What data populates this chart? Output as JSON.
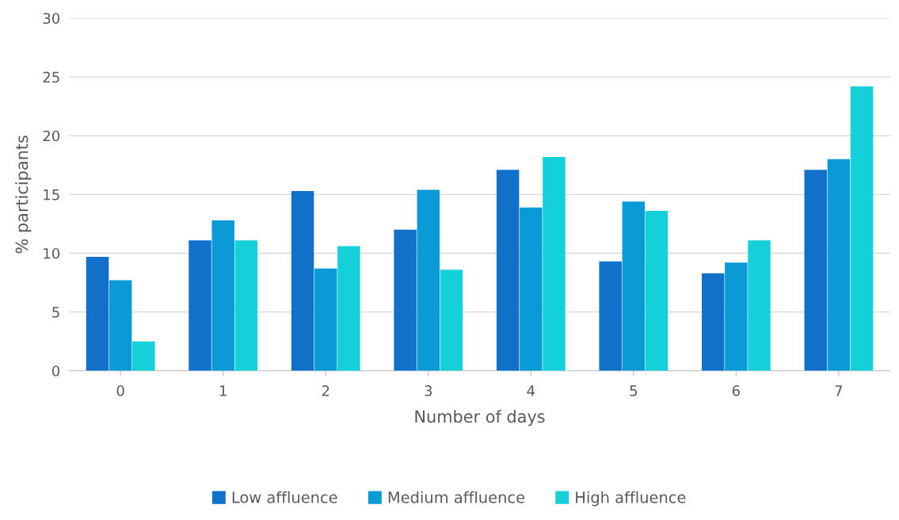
{
  "chart_data": {
    "type": "bar",
    "xlabel": "Number of days",
    "ylabel": "% participants",
    "categories": [
      "0",
      "1",
      "2",
      "3",
      "4",
      "5",
      "6",
      "7"
    ],
    "series": [
      {
        "name": "Low affluence",
        "color": "#1170c9",
        "values": [
          9.7,
          11.1,
          15.3,
          12.0,
          17.1,
          9.3,
          8.3,
          17.1
        ]
      },
      {
        "name": "Medium affluence",
        "color": "#0a9ad6",
        "values": [
          7.7,
          12.8,
          8.7,
          15.4,
          13.9,
          14.4,
          9.2,
          18.0
        ]
      },
      {
        "name": "High affluence",
        "color": "#13d0d9",
        "values": [
          2.5,
          11.1,
          10.6,
          8.6,
          18.2,
          13.6,
          11.1,
          24.2
        ]
      }
    ],
    "ylim": [
      0,
      30
    ],
    "yticks": [
      0,
      5,
      10,
      15,
      20,
      25,
      30
    ],
    "grid": "y",
    "legend": "bottom"
  }
}
